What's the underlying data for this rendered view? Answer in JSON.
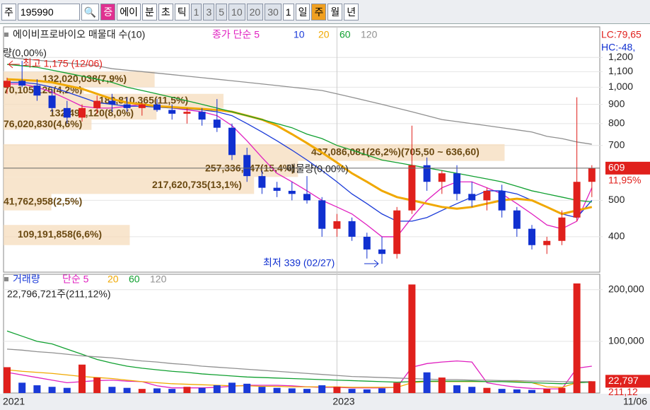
{
  "toolbar": {
    "items": [
      "주",
      "195990",
      "증",
      "에이",
      "분",
      "초",
      "틱",
      "1",
      "3",
      "5",
      "10",
      "20",
      "30",
      "1",
      "일",
      "주",
      "월",
      "년"
    ]
  },
  "chart_data": [
    {
      "type": "candlestick",
      "title": "에이비프로바이오 매물대 수(10)",
      "log": true,
      "up_color": "#e0201c",
      "down_color": "#1030d0",
      "categories": [
        "2021",
        null,
        null,
        null,
        null,
        null,
        null,
        null,
        null,
        null,
        null,
        null,
        null,
        null,
        null,
        null,
        null,
        null,
        null,
        null,
        null,
        null,
        "2023",
        null,
        null,
        null,
        null,
        null,
        null,
        null,
        null,
        null,
        null,
        null,
        null,
        null,
        null,
        null,
        null,
        "11/06"
      ],
      "open": [
        1000,
        1040,
        1010,
        950,
        880,
        830,
        880,
        920,
        900,
        880,
        900,
        870,
        850,
        860,
        820,
        780,
        660,
        580,
        540,
        530,
        520,
        500,
        420,
        440,
        400,
        370,
        360,
        470,
        620,
        560,
        590,
        520,
        500,
        530,
        470,
        420,
        380,
        390,
        450,
        560
      ],
      "high": [
        1060,
        1175,
        1050,
        990,
        920,
        900,
        950,
        960,
        940,
        910,
        930,
        900,
        880,
        880,
        930,
        800,
        690,
        600,
        560,
        560,
        580,
        510,
        460,
        450,
        410,
        400,
        480,
        790,
        650,
        600,
        620,
        560,
        540,
        550,
        480,
        430,
        400,
        470,
        940,
        620
      ],
      "low": [
        960,
        1000,
        920,
        860,
        800,
        810,
        850,
        860,
        860,
        840,
        860,
        820,
        800,
        790,
        760,
        640,
        560,
        520,
        510,
        500,
        490,
        400,
        400,
        390,
        350,
        339,
        350,
        460,
        530,
        520,
        500,
        480,
        470,
        450,
        400,
        370,
        360,
        380,
        440,
        510
      ],
      "close": [
        1040,
        1010,
        950,
        880,
        830,
        880,
        920,
        900,
        880,
        900,
        870,
        850,
        860,
        820,
        780,
        660,
        580,
        540,
        530,
        520,
        500,
        420,
        440,
        400,
        370,
        360,
        470,
        620,
        560,
        590,
        520,
        500,
        530,
        470,
        420,
        380,
        390,
        450,
        560,
        609
      ],
      "series": [
        {
          "name": "종가 단순 5",
          "color": "#e020c0",
          "values": [
            1020,
            1020,
            1000,
            970,
            930,
            890,
            880,
            880,
            890,
            900,
            890,
            880,
            870,
            860,
            840,
            790,
            720,
            650,
            590,
            560,
            530,
            500,
            480,
            460,
            430,
            400,
            400,
            450,
            500,
            540,
            560,
            560,
            540,
            520,
            490,
            460,
            430,
            420,
            440,
            540
          ]
        },
        {
          "name": "10",
          "color": "#1a3ad8",
          "values": [
            1030,
            1030,
            1020,
            1000,
            970,
            940,
            910,
            900,
            890,
            890,
            885,
            880,
            875,
            870,
            860,
            840,
            800,
            760,
            720,
            680,
            640,
            600,
            560,
            520,
            490,
            460,
            440,
            440,
            450,
            470,
            490,
            510,
            530,
            530,
            520,
            500,
            480,
            460,
            450,
            500
          ]
        },
        {
          "name": "20",
          "color": "#f0a800",
          "width": 3,
          "values": [
            1050,
            1045,
            1040,
            1030,
            1010,
            990,
            960,
            930,
            910,
            900,
            890,
            885,
            880,
            875,
            870,
            860,
            840,
            820,
            790,
            750,
            710,
            670,
            630,
            590,
            560,
            530,
            510,
            500,
            490,
            480,
            475,
            480,
            490,
            500,
            505,
            500,
            480,
            460,
            470,
            480
          ]
        },
        {
          "name": "60",
          "color": "#10a030",
          "values": [
            1150,
            1140,
            1130,
            1110,
            1090,
            1070,
            1050,
            1030,
            1000,
            980,
            960,
            940,
            920,
            900,
            880,
            860,
            840,
            820,
            800,
            780,
            750,
            730,
            700,
            680,
            660,
            640,
            630,
            620,
            610,
            600,
            590,
            580,
            570,
            560,
            545,
            530,
            520,
            510,
            500,
            495
          ]
        },
        {
          "name": "120",
          "color": "#909090",
          "values": [
            1200,
            1190,
            1180,
            1170,
            1160,
            1150,
            1140,
            1120,
            1110,
            1100,
            1090,
            1080,
            1070,
            1060,
            1050,
            1040,
            1030,
            1020,
            1010,
            1000,
            990,
            980,
            960,
            940,
            920,
            900,
            880,
            860,
            840,
            820,
            810,
            800,
            790,
            780,
            770,
            760,
            740,
            730,
            715,
            705
          ]
        }
      ],
      "ylim": [
        322,
        1410
      ],
      "yticks": [
        {
          "value": 1200,
          "label": "1,200"
        },
        {
          "value": 1100,
          "label": "1,100"
        },
        {
          "value": 1000,
          "label": "1,000"
        },
        900,
        800,
        700,
        500,
        400
      ],
      "volume_profile": [
        {
          "label": "132,020,038(7,9%)",
          "value": 7.9,
          "range": [
            1000,
            1100
          ]
        },
        {
          "label": "70,105,126(4,2%)",
          "value": 4.2,
          "range": [
            960,
            1000
          ]
        },
        {
          "label": "182,810,365(11,5%)",
          "value": 11.5,
          "range": [
            880,
            960
          ]
        },
        {
          "label": "132,490,120(8,0%)",
          "value": 8.0,
          "range": [
            820,
            880
          ]
        },
        {
          "label": "76,020,830(4,6%)",
          "value": 4.6,
          "range": [
            770,
            820
          ]
        },
        {
          "label": "437,086,081(26,2%)(705,50 ~ 636,60)",
          "value": 26.2,
          "range": [
            636.6,
            705.5
          ]
        },
        {
          "label": "257,336,247(15,4%)",
          "value": 15.4,
          "range": [
            577,
            636.6
          ]
        },
        {
          "label": "217,620,735(13,1%)",
          "value": 13.1,
          "range": [
            520,
            577
          ]
        },
        {
          "label": "41,762,958(2,5%)",
          "value": 2.5,
          "range": [
            470,
            520
          ]
        },
        {
          "label": "109,191,858(6,6%)",
          "value": 6.6,
          "range": [
            380,
            430
          ]
        }
      ],
      "annotations": [
        "최고 1,175 (12/06)",
        "최저 339 (02/27)",
        "량(0,00%)",
        "매물량(0,00%)"
      ],
      "change_label": "11,95%",
      "lc_label": "LC:79,65",
      "hc_label": "HC:-48,"
    },
    {
      "type": "bar",
      "title": "거래량",
      "color": "#1a3ad8",
      "values": [
        50000,
        20000,
        15000,
        12000,
        10000,
        55000,
        30000,
        12000,
        10000,
        8000,
        9000,
        8000,
        12000,
        10000,
        15000,
        20000,
        18000,
        12000,
        10000,
        9000,
        8000,
        15000,
        12000,
        8000,
        7000,
        9000,
        20000,
        210000,
        40000,
        30000,
        15000,
        12000,
        10000,
        8000,
        7000,
        6000,
        8000,
        10000,
        212000,
        22797
      ],
      "series": [
        {
          "name": "단순 5",
          "color": "#e020c0",
          "values": [
            40000,
            35000,
            30000,
            25000,
            20000,
            22000,
            24000,
            25000,
            23000,
            22000,
            14000,
            10000,
            10000,
            10000,
            11000,
            13000,
            15000,
            15000,
            15000,
            14000,
            12000,
            11000,
            11000,
            10000,
            10000,
            10000,
            11000,
            50000,
            57000,
            60000,
            62000,
            60000,
            20000,
            15000,
            11000,
            9000,
            8000,
            8000,
            48000,
            52000
          ]
        },
        {
          "name": "20",
          "color": "#f0a800",
          "values": [
            45000,
            42000,
            40000,
            38000,
            35000,
            32000,
            30000,
            28000,
            25000,
            22000,
            20000,
            18000,
            17000,
            16000,
            15000,
            14000,
            14000,
            13000,
            13000,
            12000,
            12000,
            12000,
            12000,
            11000,
            11000,
            11000,
            11000,
            20000,
            22000,
            22000,
            22000,
            22000,
            22000,
            22000,
            22000,
            20000,
            12000,
            11000,
            20000,
            21000
          ]
        },
        {
          "name": "60",
          "color": "#10a030",
          "values": [
            120000,
            110000,
            100000,
            95000,
            85000,
            75000,
            65000,
            58000,
            52000,
            48000,
            45000,
            42000,
            40000,
            37000,
            35000,
            33000,
            31000,
            30000,
            29000,
            28000,
            27000,
            26000,
            25000,
            24000,
            23000,
            22000,
            21000,
            22000,
            23000,
            23000,
            23000,
            23000,
            22000,
            22000,
            21000,
            20000,
            19000,
            18000,
            20000,
            21000
          ]
        },
        {
          "name": "120",
          "color": "#909090",
          "values": [
            85000,
            83000,
            80000,
            78000,
            75000,
            72000,
            70000,
            68000,
            65000,
            62000,
            60000,
            57000,
            55000,
            52000,
            50000,
            48000,
            46000,
            44000,
            42000,
            40000,
            38000,
            36000,
            34000,
            32000,
            31000,
            30000,
            29000,
            28000,
            27000,
            26000,
            26000,
            25000,
            25000,
            24000,
            24000,
            23000,
            23000,
            22000,
            22000,
            22000
          ]
        }
      ],
      "ylim": [
        0,
        227000
      ],
      "yticks": [
        {
          "value": 200000,
          "label": "200,000"
        },
        {
          "value": 100000,
          "label": "100,000"
        }
      ],
      "volume_label": "22,796,721주(211,12%)",
      "last_tag": "22,797",
      "last_pct": "211,12"
    }
  ]
}
